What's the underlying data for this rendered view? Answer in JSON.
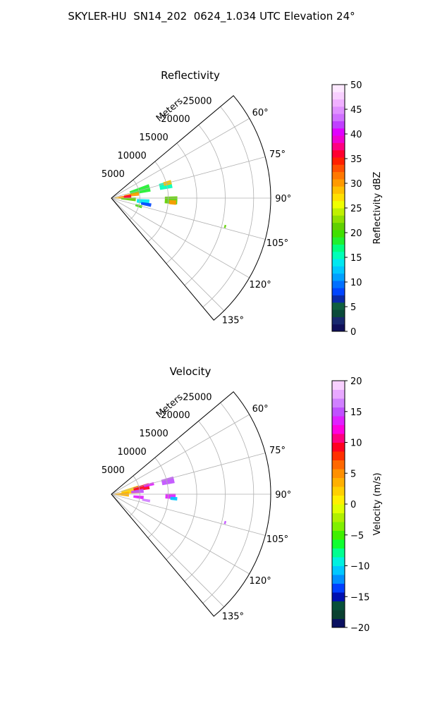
{
  "title": "SKYLER-HU  SN14_202  0624_1.034 UTC Elevation 24°",
  "chart_data": [
    {
      "type": "heatmap",
      "subtype": "polar-sector",
      "title": "Reflectivity",
      "range_label": "Meters",
      "range_max": 28000,
      "range_ticks": [
        5000,
        10000,
        15000,
        20000,
        25000
      ],
      "range_tick_labels": [
        "5000",
        "10000",
        "15000",
        "20000",
        "25000"
      ],
      "azimuth_range": [
        50,
        140
      ],
      "azimuth_ticks": [
        60,
        75,
        90,
        105,
        120,
        135
      ],
      "azimuth_tick_labels": [
        "60°",
        "75°",
        "90°",
        "105°",
        "120°",
        "135°"
      ],
      "grid": true,
      "colorbar": {
        "label": "Reflectivity dBZ",
        "min": 0,
        "max": 50,
        "ticks": [
          0,
          5,
          10,
          15,
          20,
          25,
          30,
          35,
          40,
          45,
          50
        ],
        "tick_labels": [
          "0",
          "5",
          "10",
          "15",
          "20",
          "25",
          "30",
          "35",
          "40",
          "45",
          "50"
        ],
        "colors": [
          "#10105a",
          "#18286e",
          "#0a4a3a",
          "#0f5f3f",
          "#0a2aa8",
          "#0045ff",
          "#0070ff",
          "#00a0ff",
          "#00c8ff",
          "#00e8f0",
          "#00ffb8",
          "#00ff80",
          "#20f030",
          "#40e000",
          "#60d000",
          "#90e000",
          "#c0f000",
          "#f0ff00",
          "#ffe000",
          "#ffc000",
          "#ff9a00",
          "#ff7800",
          "#ff5000",
          "#ff2000",
          "#ff0030",
          "#ff0080",
          "#f000d0",
          "#e000ff",
          "#c040ff",
          "#d070ff",
          "#e090ff",
          "#f0b0ff",
          "#f8d0ff",
          "#fde8ff"
        ]
      },
      "echoes": [
        {
          "az": 75,
          "r": 5200,
          "daz": 11,
          "dr": 3600,
          "value": 18
        },
        {
          "az": 81,
          "r": 3600,
          "daz": 8,
          "dr": 2600,
          "value": 30
        },
        {
          "az": 85,
          "r": 2400,
          "daz": 10,
          "dr": 2200,
          "value": 36
        },
        {
          "az": 88,
          "r": 1400,
          "daz": 14,
          "dr": 1600,
          "value": 28
        },
        {
          "az": 93,
          "r": 3000,
          "daz": 9,
          "dr": 2600,
          "value": 22
        },
        {
          "az": 96,
          "r": 5600,
          "daz": 8,
          "dr": 2200,
          "value": 14
        },
        {
          "az": 100,
          "r": 6200,
          "daz": 5,
          "dr": 1800,
          "value": 8
        },
        {
          "az": 106,
          "r": 5000,
          "daz": 5,
          "dr": 1200,
          "value": 20
        },
        {
          "az": 77,
          "r": 9800,
          "daz": 7,
          "dr": 2200,
          "value": 16
        },
        {
          "az": 75,
          "r": 10200,
          "daz": 4,
          "dr": 1400,
          "value": 28
        },
        {
          "az": 92,
          "r": 10500,
          "daz": 7,
          "dr": 2200,
          "value": 22
        },
        {
          "az": 94,
          "r": 10800,
          "daz": 4,
          "dr": 1200,
          "value": 30
        },
        {
          "az": 104,
          "r": 20600,
          "daz": 1.5,
          "dr": 300,
          "value": 22
        }
      ]
    },
    {
      "type": "heatmap",
      "subtype": "polar-sector",
      "title": "Velocity",
      "range_label": "Meters",
      "range_max": 28000,
      "range_ticks": [
        5000,
        10000,
        15000,
        20000,
        25000
      ],
      "range_tick_labels": [
        "5000",
        "10000",
        "15000",
        "20000",
        "25000"
      ],
      "azimuth_range": [
        50,
        140
      ],
      "azimuth_ticks": [
        60,
        75,
        90,
        105,
        120,
        135
      ],
      "azimuth_tick_labels": [
        "60°",
        "75°",
        "90°",
        "105°",
        "120°",
        "135°"
      ],
      "grid": true,
      "colorbar": {
        "label": "Velocity (m/s)",
        "min": -20,
        "max": 20,
        "ticks": [
          -20,
          -15,
          -10,
          -5,
          0,
          5,
          10,
          15,
          20
        ],
        "tick_labels": [
          "−20",
          "−15",
          "−10",
          "−5",
          "0",
          "5",
          "10",
          "15",
          "20"
        ],
        "colors": [
          "#0a1060",
          "#0a4030",
          "#08503a",
          "#0010b0",
          "#0040ff",
          "#0090ff",
          "#00c8ff",
          "#00f0e0",
          "#00ff90",
          "#10ff30",
          "#40f000",
          "#80f000",
          "#b0f000",
          "#e0ff00",
          "#fff000",
          "#ffd000",
          "#ffb000",
          "#ff9000",
          "#ff6800",
          "#ff3000",
          "#ff0020",
          "#ff0080",
          "#ff00e0",
          "#e020ff",
          "#c050ff",
          "#d080ff",
          "#e8a8ff",
          "#f8d0ff"
        ]
      },
      "echoes": [
        {
          "az": 80,
          "r": 3400,
          "daz": 16,
          "dr": 3200,
          "value": 2
        },
        {
          "az": 90,
          "r": 1800,
          "daz": 16,
          "dr": 2600,
          "value": 4
        },
        {
          "az": 78,
          "r": 5400,
          "daz": 9,
          "dr": 2800,
          "value": 9
        },
        {
          "az": 84,
          "r": 4600,
          "daz": 7,
          "dr": 2200,
          "value": 15
        },
        {
          "az": 76,
          "r": 6800,
          "daz": 4,
          "dr": 1800,
          "value": 14
        },
        {
          "az": 96,
          "r": 4800,
          "daz": 6,
          "dr": 1800,
          "value": 14
        },
        {
          "az": 100,
          "r": 6200,
          "daz": 4,
          "dr": 1400,
          "value": 16
        },
        {
          "az": 77,
          "r": 10200,
          "daz": 6,
          "dr": 2200,
          "value": 15
        },
        {
          "az": 92,
          "r": 10400,
          "daz": 5,
          "dr": 1800,
          "value": 14
        },
        {
          "az": 94,
          "r": 11000,
          "daz": 3,
          "dr": 1200,
          "value": -11
        },
        {
          "az": 104,
          "r": 20600,
          "daz": 1.5,
          "dr": 300,
          "value": 15
        }
      ]
    }
  ]
}
